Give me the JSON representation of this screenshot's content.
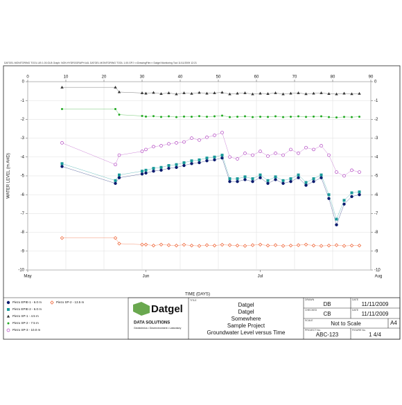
{
  "header_note": "DATGEL MONITORING TOOL LIB 1.00.GLB  Graph: NON HYDROGRAPH A4L  DATGEL MONITORING TOOL 1.00.GPJ  <<DrawingFile>>  Datgel Monitoring Tool 11/11/2009 12:21",
  "chart_data": {
    "type": "line",
    "y_label": "WATER LEVEL (m AHD)",
    "x_label": "TIME (DAYS)",
    "xlim": [
      0,
      90
    ],
    "xticks": [
      0,
      10,
      20,
      30,
      40,
      50,
      60,
      70,
      80,
      90
    ],
    "x2ticks": [
      {
        "value": 0,
        "label": "May"
      },
      {
        "value": 31,
        "label": "Jun"
      },
      {
        "value": 61,
        "label": "Jul"
      },
      {
        "value": 92,
        "label": "Aug"
      }
    ],
    "ylim": [
      -10,
      0
    ],
    "yticks": [
      0,
      -1,
      -2,
      -3,
      -4,
      -5,
      -6,
      -7,
      -8,
      -9,
      -10
    ],
    "grid": true,
    "x": [
      9,
      23,
      24,
      30,
      31,
      33,
      35,
      37,
      39,
      41,
      43,
      45,
      47,
      49,
      51,
      53,
      55,
      57,
      59,
      61,
      63,
      65,
      67,
      69,
      71,
      73,
      75,
      77,
      79,
      81,
      83,
      85,
      87
    ],
    "series": [
      {
        "name": "Piezo EPIE-1  -  6.0 m",
        "color": "#0a1a6e",
        "marker": "circle",
        "values": [
          -4.5,
          -5.4,
          -5.1,
          -4.9,
          -4.85,
          -4.75,
          -4.7,
          -4.6,
          -4.55,
          -4.45,
          -4.35,
          -4.3,
          -4.2,
          -4.15,
          -4.05,
          -5.3,
          -5.3,
          -5.2,
          -5.3,
          -5.1,
          -5.4,
          -5.2,
          -5.4,
          -5.3,
          -5.1,
          -5.5,
          -5.3,
          -5.1,
          -6.2,
          -7.6,
          -6.5,
          -6.1,
          -6.0
        ]
      },
      {
        "name": "Piezo EPIE-2  -  6.0 m",
        "color": "#1a9a9a",
        "marker": "square",
        "values": [
          -4.35,
          -5.25,
          -4.95,
          -4.75,
          -4.7,
          -4.6,
          -4.55,
          -4.45,
          -4.4,
          -4.3,
          -4.2,
          -4.15,
          -4.05,
          -4.0,
          -3.9,
          -5.15,
          -5.15,
          -5.05,
          -5.15,
          -4.95,
          -5.25,
          -5.05,
          -5.25,
          -5.15,
          -4.95,
          -5.35,
          -5.15,
          -4.95,
          -6.0,
          -7.3,
          -6.3,
          -5.9,
          -5.85
        ]
      },
      {
        "name": "Piezo SP-1  -  4.5 m",
        "color": "#333333",
        "marker": "triangle",
        "values": [
          -0.3,
          -0.3,
          -0.55,
          -0.6,
          -0.62,
          -0.58,
          -0.64,
          -0.6,
          -0.66,
          -0.6,
          -0.63,
          -0.58,
          -0.62,
          -0.6,
          -0.57,
          -0.66,
          -0.62,
          -0.6,
          -0.66,
          -0.62,
          -0.64,
          -0.6,
          -0.66,
          -0.62,
          -0.6,
          -0.65,
          -0.62,
          -0.6,
          -0.64,
          -0.66,
          -0.62,
          -0.65,
          -0.63
        ]
      },
      {
        "name": "Piezo SP-2  -  7.5 m",
        "color": "#22aa22",
        "marker": "circle-small",
        "values": [
          -1.45,
          -1.45,
          -1.75,
          -1.82,
          -1.85,
          -1.83,
          -1.87,
          -1.84,
          -1.88,
          -1.85,
          -1.86,
          -1.83,
          -1.86,
          -1.84,
          -1.8,
          -1.88,
          -1.86,
          -1.84,
          -1.88,
          -1.86,
          -1.87,
          -1.84,
          -1.88,
          -1.86,
          -1.84,
          -1.87,
          -1.85,
          -1.84,
          -1.88,
          -1.9,
          -1.87,
          -1.88,
          -1.86
        ]
      },
      {
        "name": "Piezo SP-3  -  10.0 m",
        "color": "#b040c0",
        "marker": "circle-open",
        "values": [
          -3.25,
          -4.4,
          -3.9,
          -3.7,
          -3.6,
          -3.45,
          -3.4,
          -3.3,
          -3.25,
          -3.2,
          -3.0,
          -3.1,
          -2.95,
          -2.85,
          -2.7,
          -4.0,
          -4.1,
          -3.8,
          -3.9,
          -3.7,
          -3.95,
          -3.8,
          -3.9,
          -3.6,
          -3.8,
          -3.5,
          -3.6,
          -3.4,
          -3.9,
          -4.8,
          -5.0,
          -4.7,
          -4.8
        ]
      },
      {
        "name": "Piezo SP-2  -  13.5 m",
        "color": "#ee5522",
        "marker": "diamond-open",
        "values": [
          -8.3,
          -8.3,
          -8.6,
          -8.65,
          -8.65,
          -8.7,
          -8.65,
          -8.68,
          -8.7,
          -8.66,
          -8.7,
          -8.72,
          -8.68,
          -8.7,
          -8.66,
          -8.68,
          -8.7,
          -8.72,
          -8.68,
          -8.65,
          -8.7,
          -8.68,
          -8.72,
          -8.7,
          -8.68,
          -8.65,
          -8.7,
          -8.72,
          -8.7,
          -8.68,
          -8.72,
          -8.7,
          -8.7
        ]
      }
    ]
  },
  "title_block": {
    "logo": {
      "name": "Datgel",
      "tagline": "DATA SOLUTIONS",
      "sub": "Geotechnics • Geoenvironment • Laboratory"
    },
    "title_label": "TITLE",
    "title_lines": [
      "Datgel",
      "Datgel",
      "Somewhere",
      "Sample Project",
      "Groundwater Level versus Time"
    ],
    "drawn_label": "DRAWN",
    "drawn": "DB",
    "date_label": "DATE",
    "drawn_date": "11/11/2009",
    "checked_label": "CHECKED",
    "checked": "CB",
    "checked_date": "11/11/2009",
    "scale_label": "SCALE",
    "scale": "Not to Scale",
    "sheet": "A4",
    "project_label": "PROJECT No.",
    "project": "ABC-123",
    "figure_label": "FIGURE No.",
    "figure": "1  4/4"
  }
}
